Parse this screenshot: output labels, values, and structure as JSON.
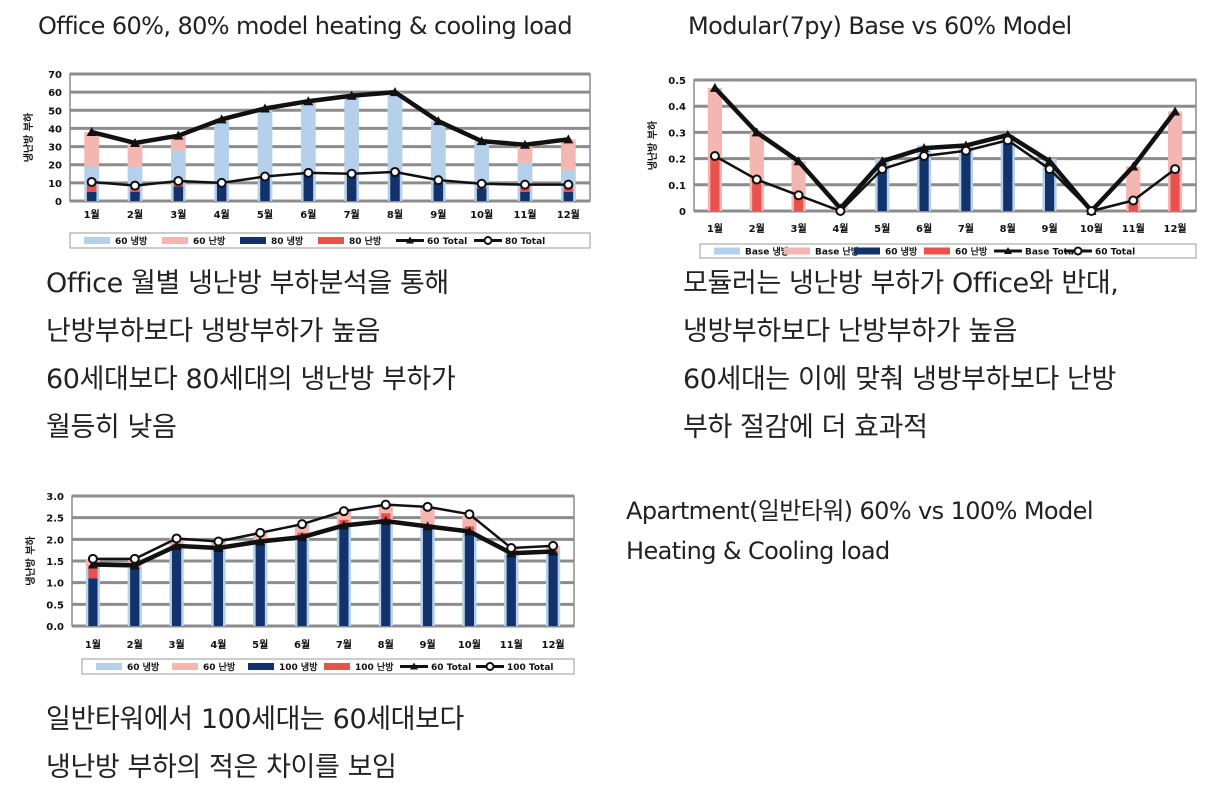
{
  "charts_section": {
    "office_title": "Office 60%, 80% model heating & cooling load",
    "modular_title": "Modular(7py) Base vs 60% Model",
    "apartment_title_lines": [
      "Apartment(일반타워) 60% vs 100% Model",
      "Heating & Cooling load"
    ]
  },
  "paragraphs": {
    "office": [
      "Office 월별 냉난방 부하분석을 통해",
      "난방부하보다 냉방부하가 높음",
      "60세대보다 80세대의 냉난방 부하가",
      "월등히 낮음"
    ],
    "modular": [
      "모듈러는 냉난방 부하가 Office와 반대,",
      "냉방부하보다 난방부하가 높음",
      "60세대는 이에 맞춰 냉방부하보다 난방",
      "부하 절감에 더 효과적"
    ],
    "apartment": [
      "일반타워에서 100세대는 60세대보다",
      "냉난방 부하의 적은 차이를 보임"
    ]
  },
  "colors": {
    "light_blue": "#b4d0ea",
    "light_red": "#f4b6b0",
    "navy": "#13326b",
    "red": "#e8514c",
    "line": "#111111",
    "grid": "#8c8c8c"
  },
  "chart_data": [
    {
      "type": "bar",
      "id": "office",
      "title": "Office 60%, 80% model heating & cooling load",
      "ylabel": "냉난방 부하",
      "xlabel": "",
      "ylim": [
        0,
        70
      ],
      "yticks": [
        "0",
        "10",
        "20",
        "30",
        "40",
        "50",
        "60",
        "70"
      ],
      "categories": [
        "1월",
        "2월",
        "3월",
        "4월",
        "5월",
        "6월",
        "7월",
        "8월",
        "9월",
        "10월",
        "11월",
        "12월"
      ],
      "bar_series": [
        {
          "name": "60 냉방",
          "color": "#b4d0ea",
          "values": [
            19,
            19,
            28,
            44,
            51,
            54,
            58,
            60,
            44,
            32,
            21,
            17
          ]
        },
        {
          "name": "60 난방",
          "color": "#f4b6b0",
          "values": [
            19,
            13,
            8,
            1,
            0,
            0,
            0,
            0,
            0,
            1,
            10,
            17
          ]
        },
        {
          "name": "80 냉방",
          "color": "#13326b",
          "values": [
            5,
            5,
            8,
            9,
            13,
            15,
            15,
            16,
            10,
            7,
            5,
            5
          ]
        },
        {
          "name": "80 난방",
          "color": "#e8514c",
          "values": [
            5,
            3,
            2,
            0,
            0,
            0,
            0,
            0,
            0,
            1,
            3,
            4
          ]
        }
      ],
      "line_series": [
        {
          "name": "60 Total",
          "marker": "triangle",
          "values": [
            38,
            32,
            36,
            45,
            51,
            55,
            58,
            60,
            44,
            33,
            31,
            34
          ]
        },
        {
          "name": "80 Total",
          "marker": "circle",
          "values": [
            10.5,
            8.5,
            11,
            10,
            13.5,
            15.5,
            15,
            16,
            11.5,
            9.5,
            9,
            9
          ]
        }
      ],
      "legend": [
        "60 냉방",
        "60 난방",
        "80 냉방",
        "80 난방",
        "60 Total",
        "80 Total"
      ],
      "legend_position": "bottom",
      "grid": true
    },
    {
      "type": "bar",
      "id": "modular",
      "title": "Modular(7py) Base vs 60% Model",
      "ylabel": "냉난방 부하",
      "xlabel": "",
      "ylim": [
        0,
        0.5
      ],
      "yticks": [
        "0",
        "0.1",
        "0.2",
        "0.3",
        "0.4",
        "0.5"
      ],
      "categories": [
        "1월",
        "2월",
        "3월",
        "4월",
        "5월",
        "6월",
        "7월",
        "8월",
        "9월",
        "10월",
        "11월",
        "12월"
      ],
      "bar_series": [
        {
          "name": "Base 냉방",
          "color": "#b4d0ea",
          "values": [
            0,
            0,
            0,
            0,
            0.2,
            0.25,
            0.25,
            0.29,
            0.2,
            0,
            0,
            0
          ]
        },
        {
          "name": "Base 난방",
          "color": "#f4b6b0",
          "values": [
            0.47,
            0.3,
            0.19,
            0.02,
            0,
            0,
            0,
            0,
            0,
            0,
            0.17,
            0.38
          ]
        },
        {
          "name": "60 냉방",
          "color": "#13326b",
          "values": [
            0,
            0,
            0,
            0,
            0.16,
            0.21,
            0.23,
            0.26,
            0.16,
            0,
            0,
            0
          ]
        },
        {
          "name": "60 난방",
          "color": "#e8514c",
          "values": [
            0.21,
            0.12,
            0.06,
            0.01,
            0,
            0,
            0,
            0,
            0,
            0,
            0.04,
            0.16
          ]
        }
      ],
      "line_series": [
        {
          "name": "Base Total",
          "marker": "triangle",
          "values": [
            0.47,
            0.3,
            0.19,
            0.01,
            0.19,
            0.24,
            0.25,
            0.29,
            0.19,
            0,
            0.17,
            0.38
          ]
        },
        {
          "name": "60 Total",
          "marker": "circle",
          "values": [
            0.21,
            0.12,
            0.06,
            0,
            0.16,
            0.21,
            0.23,
            0.27,
            0.16,
            0,
            0.04,
            0.16
          ]
        }
      ],
      "legend": [
        "Base 냉방",
        "Base 난방",
        "60 냉방",
        "60 난방",
        "Base Total",
        "60 Total"
      ],
      "legend_position": "bottom",
      "grid": true
    },
    {
      "type": "bar",
      "id": "apartment",
      "title": "Apartment(일반타워) 60% vs 100% Model Heating & Cooling load",
      "ylabel": "냉난방 부하",
      "xlabel": "",
      "ylim": [
        0,
        3.0
      ],
      "yticks": [
        "0.0",
        "0.5",
        "1.0",
        "1.5",
        "2.0",
        "2.5",
        "3.0"
      ],
      "categories": [
        "1월",
        "2월",
        "3월",
        "4월",
        "5월",
        "6월",
        "7월",
        "8월",
        "9월",
        "10월",
        "11월",
        "12월"
      ],
      "bar_series": [
        {
          "name": "60 냉방",
          "color": "#b4d0ea",
          "values": [
            1.35,
            1.4,
            1.9,
            1.85,
            1.95,
            2.1,
            2.35,
            2.45,
            2.3,
            2.2,
            1.7,
            1.75
          ]
        },
        {
          "name": "60 난방",
          "color": "#f4b6b0",
          "values": [
            0.2,
            0.15,
            0.12,
            0.1,
            0.2,
            0.25,
            0.3,
            0.35,
            0.45,
            0.35,
            0.1,
            0.1
          ]
        },
        {
          "name": "100 냉방",
          "color": "#13326b",
          "values": [
            1.1,
            1.35,
            1.85,
            1.8,
            1.9,
            2.05,
            2.3,
            2.4,
            2.25,
            2.15,
            1.65,
            1.7
          ]
        },
        {
          "name": "100 난방",
          "color": "#e8514c",
          "values": [
            0.3,
            0.05,
            0.05,
            0.05,
            0.1,
            0.1,
            0.15,
            0.2,
            0.1,
            0.15,
            0.05,
            0.05
          ]
        }
      ],
      "line_series": [
        {
          "name": "60 Total",
          "marker": "triangle",
          "values": [
            1.42,
            1.4,
            1.85,
            1.8,
            1.95,
            2.05,
            2.32,
            2.42,
            2.3,
            2.18,
            1.68,
            1.72
          ]
        },
        {
          "name": "100 Total",
          "marker": "circle",
          "values": [
            1.55,
            1.55,
            2.02,
            1.95,
            2.15,
            2.35,
            2.65,
            2.8,
            2.75,
            2.58,
            1.8,
            1.85
          ]
        }
      ],
      "legend": [
        "60 냉방",
        "60 난방",
        "100 냉방",
        "100 난방",
        "60 Total",
        "100 Total"
      ],
      "legend_position": "bottom",
      "grid": true
    }
  ]
}
